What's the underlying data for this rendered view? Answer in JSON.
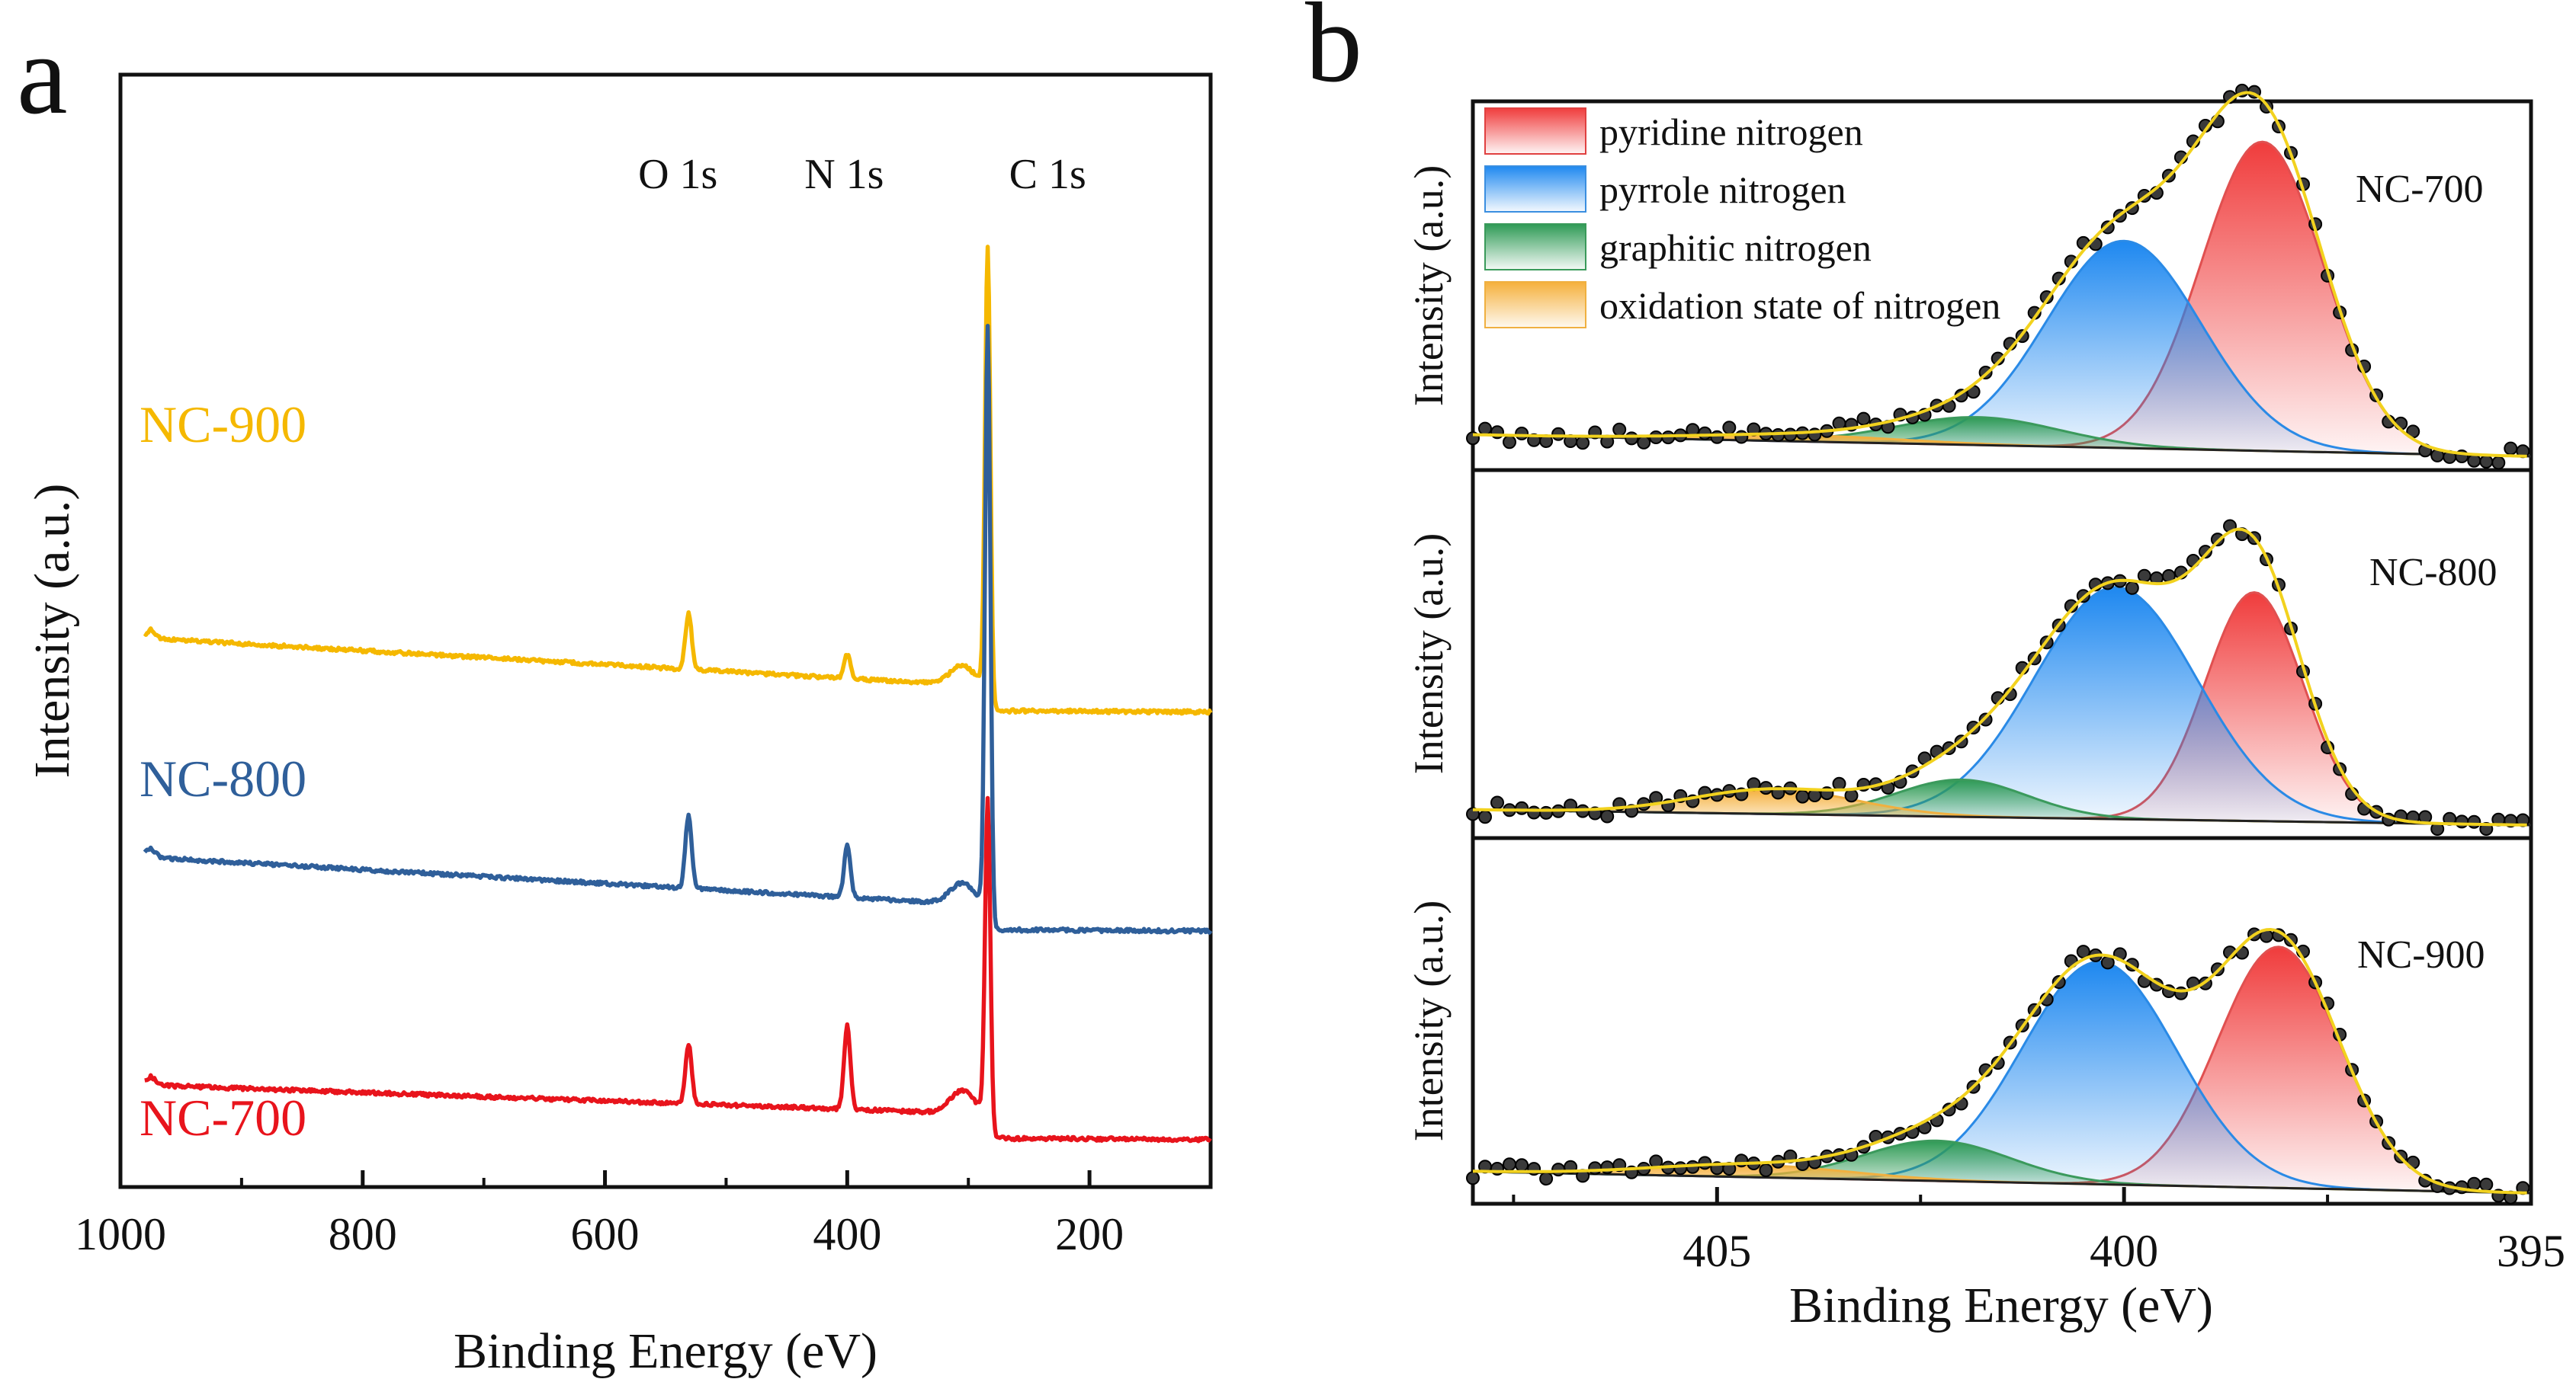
{
  "panel_a": {
    "letter": "a",
    "xlabel": "Binding Energy (eV)",
    "ylabel": "Intensity (a.u.)",
    "peak_labels": [
      {
        "text": "O 1s",
        "x": 531
      },
      {
        "text": "N 1s",
        "x": 400
      },
      {
        "text": "C 1s",
        "x": 284
      }
    ],
    "series_labels": [
      {
        "text": "NC-900",
        "color": "#f5b800"
      },
      {
        "text": "NC-800",
        "color": "#2f5f9a"
      },
      {
        "text": "NC-700",
        "color": "#e8141c"
      }
    ]
  },
  "panel_b": {
    "letter": "b",
    "xlabel": "Binding Energy (eV)",
    "ylabel": "Intensity (a.u.)",
    "legend": [
      {
        "text": "pyridine nitrogen",
        "color": "#f03c3c"
      },
      {
        "text": "pyrrole nitrogen",
        "color": "#1e88f0"
      },
      {
        "text": "graphitic nitrogen",
        "color": "#2e9a55"
      },
      {
        "text": "oxidation state of nitrogen",
        "color": "#f5b03c"
      }
    ],
    "sub_labels": [
      "NC-700",
      "NC-800",
      "NC-900"
    ]
  },
  "chart_data": [
    {
      "type": "line",
      "title": "",
      "xlabel": "Binding Energy (eV)",
      "ylabel": "Intensity (a.u.)",
      "xlim": [
        1000,
        100
      ],
      "x_ticks": [
        1000,
        800,
        600,
        400,
        200
      ],
      "y_ticks": [],
      "series": [
        {
          "name": "NC-900",
          "color": "#f5b800",
          "baseline": 7.2,
          "slope": 0.001,
          "peaks": [
            {
              "center": 531,
              "height": 0.8
            },
            {
              "center": 400,
              "height": 0.35
            },
            {
              "center": 284,
              "height": 6.3
            }
          ]
        },
        {
          "name": "NC-800",
          "color": "#2f5f9a",
          "baseline": 4.05,
          "slope": 0.001,
          "peaks": [
            {
              "center": 531,
              "height": 1.05
            },
            {
              "center": 400,
              "height": 0.75
            },
            {
              "center": 284,
              "height": 8.3
            }
          ]
        },
        {
          "name": "NC-700",
          "color": "#e8141c",
          "baseline": 1.05,
          "slope": 0.0006,
          "peaks": [
            {
              "center": 531,
              "height": 0.85
            },
            {
              "center": 400,
              "height": 1.2
            },
            {
              "center": 284,
              "height": 4.5
            }
          ]
        }
      ]
    },
    {
      "type": "area",
      "title": "NC-700",
      "xlabel": "Binding Energy (eV)",
      "ylabel": "Intensity (a.u.)",
      "xlim": [
        408,
        395
      ],
      "x_ticks": [
        405,
        400,
        395
      ],
      "components": [
        {
          "name": "pyridine nitrogen",
          "center": 398.3,
          "height": 1.0,
          "width": 0.75
        },
        {
          "name": "pyrrole nitrogen",
          "center": 400.0,
          "height": 0.67,
          "width": 0.95
        },
        {
          "name": "graphitic nitrogen",
          "center": 401.8,
          "height": 0.09,
          "width": 1.0
        },
        {
          "name": "oxidation state of nitrogen",
          "center": 404.0,
          "height": 0.02,
          "width": 1.3
        }
      ],
      "background": {
        "left": 0.07,
        "right": 0.0
      }
    },
    {
      "type": "area",
      "title": "NC-800",
      "xlabel": "Binding Energy (eV)",
      "ylabel": "Intensity (a.u.)",
      "xlim": [
        408,
        395
      ],
      "x_ticks": [
        405,
        400,
        395
      ],
      "components": [
        {
          "name": "pyridine nitrogen",
          "center": 398.4,
          "height": 0.74,
          "width": 0.6
        },
        {
          "name": "pyrrole nitrogen",
          "center": 400.1,
          "height": 0.75,
          "width": 1.0
        },
        {
          "name": "graphitic nitrogen",
          "center": 402.0,
          "height": 0.12,
          "width": 0.8
        },
        {
          "name": "oxidation state of nitrogen",
          "center": 404.3,
          "height": 0.08,
          "width": 1.0
        }
      ],
      "background": {
        "left": 0.05,
        "right": 0.0
      }
    },
    {
      "type": "area",
      "title": "NC-900",
      "xlabel": "Binding Energy (eV)",
      "ylabel": "Intensity (a.u.)",
      "xlim": [
        408,
        395
      ],
      "x_ticks": [
        405,
        400,
        395
      ],
      "components": [
        {
          "name": "pyridine nitrogen",
          "center": 398.1,
          "height": 0.78,
          "width": 0.75
        },
        {
          "name": "pyrrole nitrogen",
          "center": 400.3,
          "height": 0.72,
          "width": 0.95
        },
        {
          "name": "graphitic nitrogen",
          "center": 402.3,
          "height": 0.13,
          "width": 0.9
        },
        {
          "name": "oxidation state of nitrogen",
          "center": 404.6,
          "height": 0.04,
          "width": 1.2
        }
      ],
      "background": {
        "left": 0.07,
        "right": 0.0
      }
    }
  ]
}
